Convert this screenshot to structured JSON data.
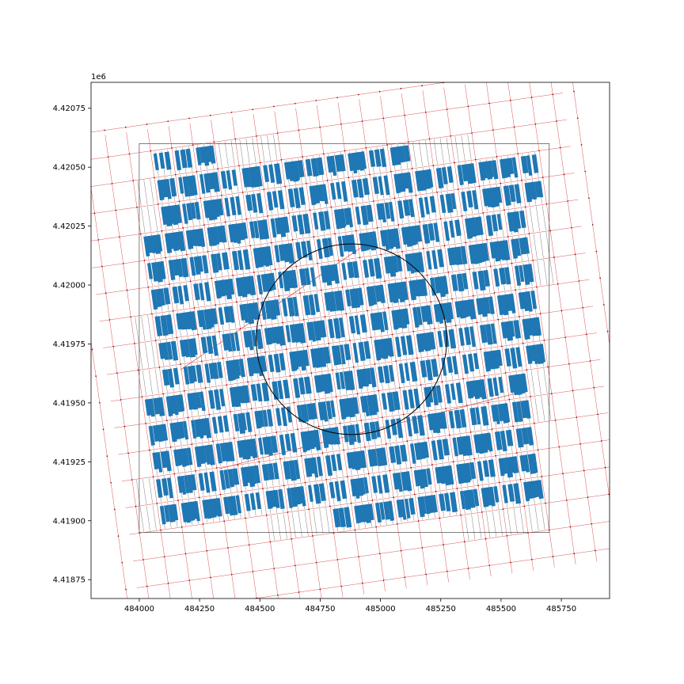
{
  "figure": {
    "offset_text": "1e6"
  },
  "chart_data": {
    "type": "map",
    "title": "",
    "xlabel": "",
    "ylabel": "",
    "xlim": [
      483800,
      485950
    ],
    "ylim": [
      4418670,
      4420860
    ],
    "x_ticks": [
      484000,
      484250,
      484500,
      484750,
      485000,
      485250,
      485500,
      485750
    ],
    "y_ticks": [
      4418750,
      4419000,
      4419250,
      4419500,
      4419750,
      4420000,
      4420250,
      4420500,
      4420750
    ],
    "y_tick_labels": [
      "4.41875",
      "4.41900",
      "4.41925",
      "4.41950",
      "4.41975",
      "4.42000",
      "4.42025",
      "4.42050",
      "4.42075"
    ],
    "study_area": {
      "x_range": [
        484000,
        485700
      ],
      "y_range": [
        4418950,
        4420600
      ]
    },
    "buffer_circle": {
      "center": [
        484880,
        4419770
      ],
      "radius": 395
    },
    "street_grid_angle_deg": 8,
    "layers": {
      "buildings": {
        "color": "#1f77b4"
      },
      "tessellation": {
        "color": "#000000"
      },
      "street_network": {
        "color": "#d62728"
      }
    },
    "diagonal_streets": [
      {
        "from": [
          484170,
          4419640
        ],
        "to": [
          484950,
          4420180
        ]
      },
      {
        "from": [
          484330,
          4419220
        ],
        "to": [
          485560,
          4419540
        ]
      }
    ],
    "grid": false,
    "legend": "none"
  }
}
